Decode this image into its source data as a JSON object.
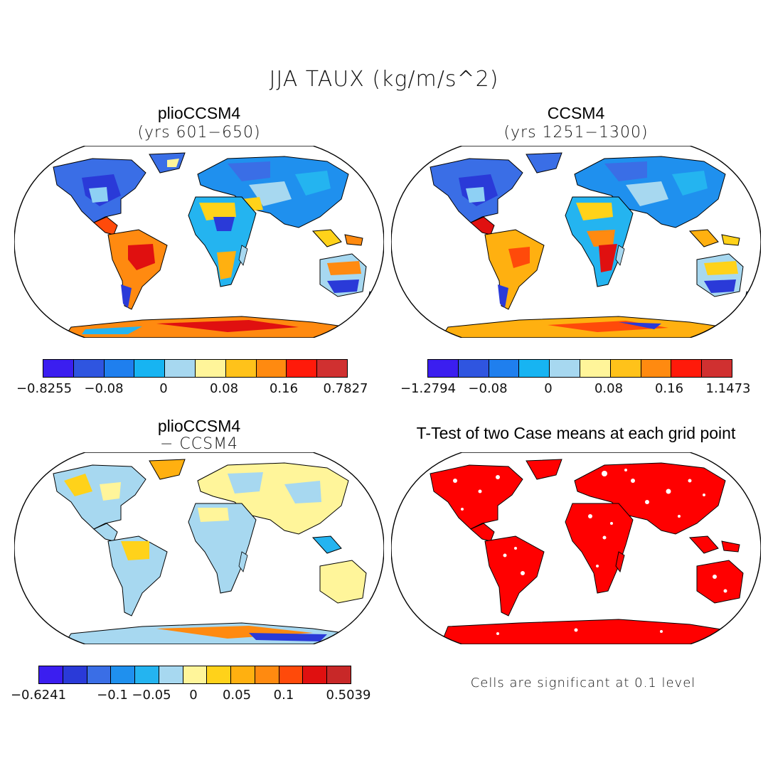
{
  "figure": {
    "title": "JJA TAUX (kg/m/s^2)"
  },
  "panels": [
    {
      "id": "plio",
      "title": "plioCCSM4",
      "subtitle": "(yrs 601−650)",
      "colorbar": {
        "colors": [
          "#3b1ef0",
          "#2f55e0",
          "#1f7fee",
          "#17b4f2",
          "#a7d8f0",
          "#fff59a",
          "#ffc21a",
          "#ff8a10",
          "#ff1a0a",
          "#d03030"
        ],
        "ticks": [
          "−0.8255",
          "−0.08",
          "0",
          "0.08",
          "0.16",
          "0.7827"
        ]
      }
    },
    {
      "id": "ccsm",
      "title": "CCSM4",
      "subtitle": "(yrs 1251−1300)",
      "colorbar": {
        "colors": [
          "#3b1ef0",
          "#2f55e0",
          "#1f7fee",
          "#17b4f2",
          "#a7d8f0",
          "#fff59a",
          "#ffc21a",
          "#ff8a10",
          "#ff1a0a",
          "#d03030"
        ],
        "ticks": [
          "−1.2794",
          "−0.08",
          "0",
          "0.08",
          "0.16",
          "1.1473"
        ]
      }
    },
    {
      "id": "diff",
      "title": "plioCCSM4",
      "subtitle": "− CCSM4",
      "colorbar": {
        "colors": [
          "#3b1ef0",
          "#2a3ad8",
          "#3a6ee6",
          "#1f90ee",
          "#24b4f0",
          "#a7d8f0",
          "#fff59a",
          "#ffd21a",
          "#ffb010",
          "#ff8a10",
          "#ff4a0a",
          "#e01010",
          "#c82828"
        ],
        "ticks": [
          "−0.6241",
          "−0.1",
          "−0.05",
          "0",
          "0.05",
          "0.1",
          "0.5039"
        ]
      }
    },
    {
      "id": "ttest",
      "title": "T-Test of two Case means at each grid point",
      "note": "Cells are significant at 0.1 level"
    }
  ]
}
